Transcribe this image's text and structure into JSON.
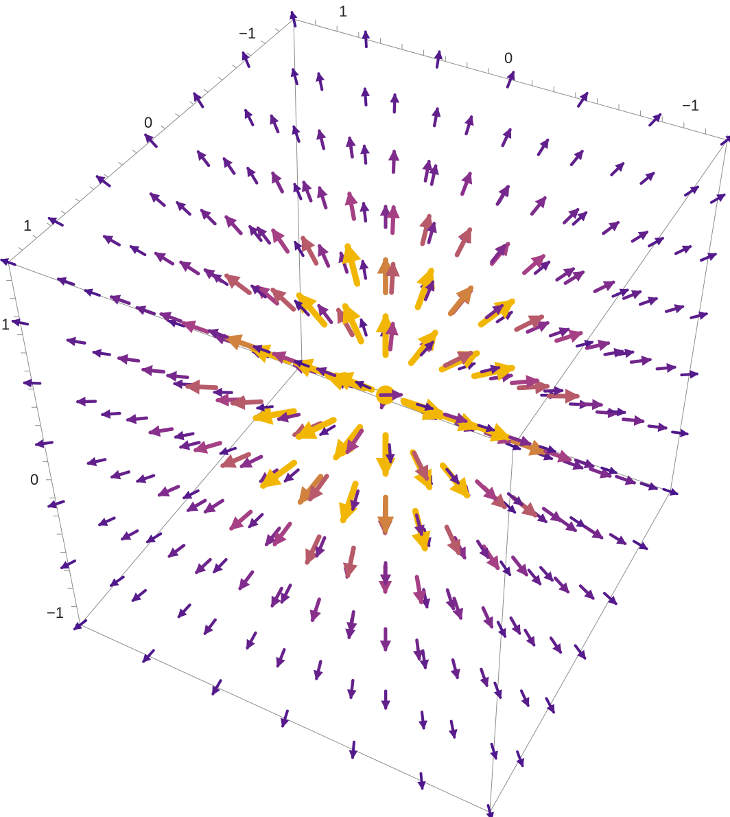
{
  "chart_data": {
    "type": "vector-field-3d",
    "field": "radial (points toward the origin)",
    "plot_range": {
      "x": [
        -1,
        1
      ],
      "y": [
        -1,
        1
      ],
      "z": [
        -1,
        1
      ]
    },
    "grid_per_axis": 7,
    "color_function": "magnitude",
    "colors": {
      "low": "#2e0a8c",
      "mid": "#a23a8c",
      "high": "#f2b705",
      "box": "#8c8c8c",
      "background": "#ffffff"
    },
    "axes": {
      "top_front": {
        "ticks": [
          -1,
          0,
          1
        ],
        "tick_labels": [
          "−1",
          "0",
          "1"
        ]
      },
      "top_left": {
        "ticks": [
          -1,
          0,
          1
        ],
        "tick_labels": [
          "−1",
          "0",
          "1"
        ]
      },
      "left_vertical": {
        "ticks": [
          -1,
          0,
          1
        ],
        "tick_labels": [
          "−1",
          "0",
          "1"
        ]
      }
    },
    "xlabel": "",
    "ylabel": "",
    "zlabel": "",
    "title": ""
  }
}
